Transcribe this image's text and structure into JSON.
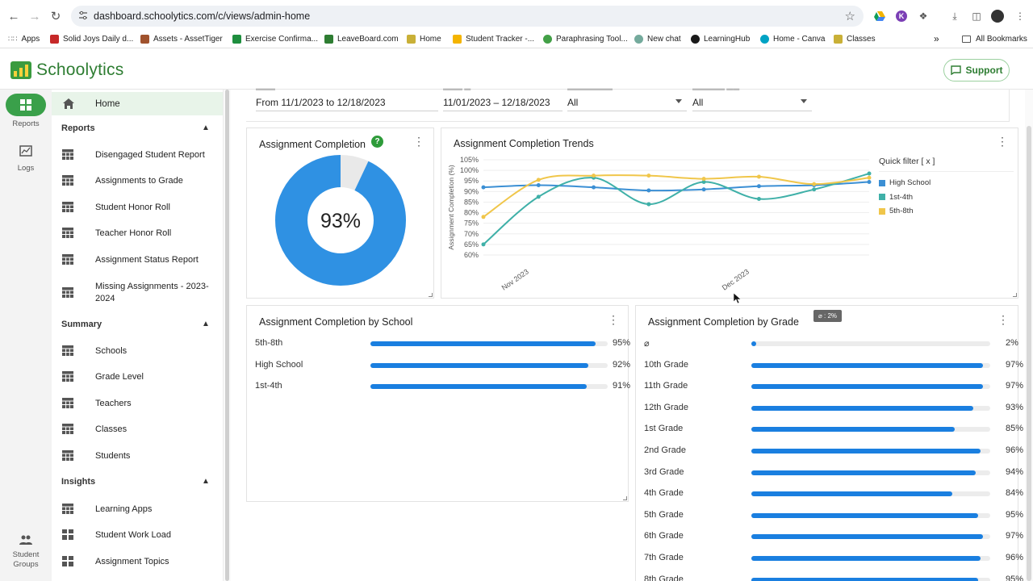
{
  "browser": {
    "url": "dashboard.schoolytics.com/c/views/admin-home",
    "bookmarks": [
      "Apps",
      "Solid Joys Daily d...",
      "Assets - AssetTiger",
      "Exercise Confirma...",
      "LeaveBoard.com",
      "Home",
      "Student Tracker -...",
      "Paraphrasing Tool...",
      "New chat",
      "LearningHub",
      "Home - Canva",
      "Classes"
    ],
    "all_bookmarks": "All Bookmarks",
    "more": "»"
  },
  "app": {
    "name": "Schoolytics",
    "support": "Support"
  },
  "rail": {
    "reports": "Reports",
    "logs": "Logs",
    "student_groups": "Student Groups"
  },
  "sidebar": {
    "home": "Home",
    "reports_title": "Reports",
    "reports": [
      "Disengaged Student Report",
      "Assignments to Grade",
      "Student Honor Roll",
      "Teacher Honor Roll",
      "Assignment Status Report",
      "Missing Assignments - 2023-2024"
    ],
    "summary_title": "Summary",
    "summary": [
      "Schools",
      "Grade Level",
      "Teachers",
      "Classes",
      "Students"
    ],
    "insights_title": "Insights",
    "insights": [
      "Learning Apps",
      "Student Work Load",
      "Assignment Topics"
    ]
  },
  "filters": {
    "period": "From 11/1/2023 to 12/18/2023",
    "dates": "11/01/2023 – 12/18/2023",
    "school": "All",
    "grade": "All"
  },
  "completion": {
    "title": "Assignment Completion",
    "help": "?",
    "percent_label": "93%",
    "percent": 93,
    "color": "#2f91e3",
    "remainder_color": "#e9e9e9"
  },
  "trends": {
    "title": "Assignment Completion Trends",
    "quick_filter": "Quick filter [ x ]"
  },
  "by_school": {
    "title": "Assignment Completion by School",
    "rows": [
      {
        "label": "5th-8th",
        "pct": "95%",
        "value": 95
      },
      {
        "label": "High School",
        "pct": "92%",
        "value": 92
      },
      {
        "label": "1st-4th",
        "pct": "91%",
        "value": 91
      }
    ]
  },
  "by_grade": {
    "title": "Assignment Completion by Grade",
    "tooltip": "⌀ : 2%",
    "rows": [
      {
        "label": "⌀",
        "pct": "2%",
        "value": 2
      },
      {
        "label": "10th Grade",
        "pct": "97%",
        "value": 97
      },
      {
        "label": "11th Grade",
        "pct": "97%",
        "value": 97
      },
      {
        "label": "12th Grade",
        "pct": "93%",
        "value": 93
      },
      {
        "label": "1st Grade",
        "pct": "85%",
        "value": 85
      },
      {
        "label": "2nd Grade",
        "pct": "96%",
        "value": 96
      },
      {
        "label": "3rd Grade",
        "pct": "94%",
        "value": 94
      },
      {
        "label": "4th Grade",
        "pct": "84%",
        "value": 84
      },
      {
        "label": "5th Grade",
        "pct": "95%",
        "value": 95
      },
      {
        "label": "6th Grade",
        "pct": "97%",
        "value": 97
      },
      {
        "label": "7th Grade",
        "pct": "96%",
        "value": 96
      },
      {
        "label": "8th Grade",
        "pct": "95%",
        "value": 95
      }
    ]
  },
  "chart_data": {
    "type": "line",
    "ylabel": "Assignment Completion (%)",
    "xlabel": "",
    "ylim": [
      60,
      105
    ],
    "yticks": [
      "60%",
      "65%",
      "70%",
      "75%",
      "80%",
      "85%",
      "90%",
      "95%",
      "100%",
      "105%"
    ],
    "xtick_labels": [
      "Nov 2023",
      "Dec 2023"
    ],
    "x": [
      0,
      1,
      2,
      3,
      4,
      5,
      6,
      7
    ],
    "legend_position": "right",
    "grid": true,
    "series": [
      {
        "name": "High School",
        "color": "#3b8fd4",
        "values": [
          92,
          93,
          92,
          90.5,
          91,
          92.5,
          93,
          94.5
        ]
      },
      {
        "name": "1st-4th",
        "color": "#3fb0a8",
        "values": [
          65,
          87.5,
          96.5,
          84,
          94.5,
          86.5,
          91,
          98.5
        ]
      },
      {
        "name": "5th-8th",
        "color": "#f0c64a",
        "values": [
          78,
          95.5,
          97.5,
          97.5,
          96,
          97,
          93.5,
          96.5
        ]
      }
    ]
  }
}
